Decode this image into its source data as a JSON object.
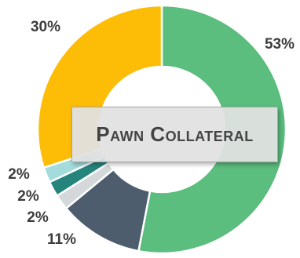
{
  "chart_data": {
    "type": "pie",
    "variant": "donut",
    "title": "Pawn Collateral",
    "start_angle_deg": 0,
    "direction": "clockwise",
    "slices": [
      {
        "value": 53,
        "label": "53%",
        "color": "#5bbd7e"
      },
      {
        "value": 11,
        "label": "11%",
        "color": "#4d5d6e"
      },
      {
        "value": 2,
        "label": "2%",
        "color": "#d4d8da"
      },
      {
        "value": 2,
        "label": "2%",
        "color": "#25857d"
      },
      {
        "value": 2,
        "label": "2%",
        "color": "#a4dcdc"
      },
      {
        "value": 30,
        "label": "30%",
        "color": "#fdbd07"
      }
    ]
  }
}
